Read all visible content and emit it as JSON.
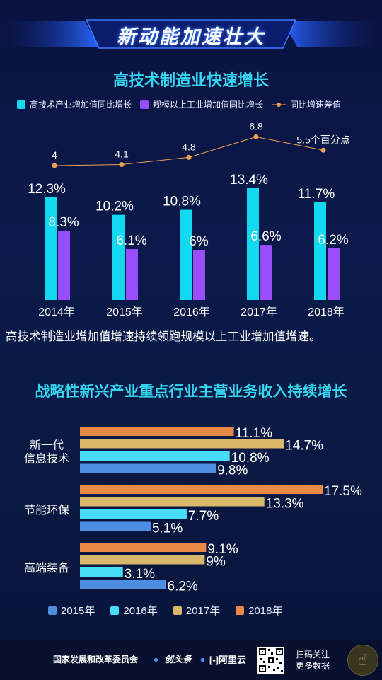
{
  "banner": {
    "title": "新动能加速壮大"
  },
  "section1": {
    "title": "高技术制造业快速增长",
    "legend": [
      {
        "name": "高技术产业增加值同比增长",
        "color": "#12d8f0"
      },
      {
        "name": "规模以上工业增加值同比增长",
        "color": "#9a4dff"
      },
      {
        "name": "同比增速差值",
        "color": "#f0a050"
      }
    ],
    "caption": "高技术制造业增加值增速持续领跑规模以上工业增加值增速。"
  },
  "section2": {
    "title": "战略性新兴产业重点行业主营业务收入持续增长",
    "legend": [
      {
        "name": "2015年",
        "color": "#4d8ee0"
      },
      {
        "name": "2016年",
        "color": "#48dcf5"
      },
      {
        "name": "2017年",
        "color": "#d8b86a"
      },
      {
        "name": "2018年",
        "color": "#e88a45"
      }
    ]
  },
  "footer": {
    "org": "国家发展和改革委员会",
    "logo1": "创头条",
    "logo2": "[-]阿里云",
    "scan": [
      "扫码关注",
      "更多数据"
    ]
  },
  "chart_data": [
    {
      "type": "bar",
      "title": "高技术制造业快速增长",
      "categories": [
        "2014年",
        "2015年",
        "2016年",
        "2017年",
        "2018年"
      ],
      "series": [
        {
          "name": "高技术产业增加值同比增长",
          "values": [
            12.3,
            10.2,
            10.8,
            13.4,
            11.7
          ],
          "labels": [
            "12.3%",
            "10.2%",
            "10.8%",
            "13.4%",
            "11.7%"
          ]
        },
        {
          "name": "规模以上工业增加值同比增长",
          "values": [
            8.3,
            6.1,
            6.0,
            6.6,
            6.2
          ],
          "labels": [
            "8.3%",
            "6.1%",
            "6%",
            "6.6%",
            "6.2%"
          ]
        },
        {
          "name": "同比增速差值",
          "type": "line",
          "values": [
            4,
            4.1,
            4.8,
            6.8,
            5.5
          ],
          "labels": [
            "4",
            "4.1",
            "4.8",
            "6.8",
            "5.5个百分点"
          ]
        }
      ],
      "legend": "top",
      "grid": false
    },
    {
      "type": "bar",
      "orientation": "horizontal",
      "title": "战略性新兴产业重点行业主营业务收入持续增长",
      "categories": [
        "新一代信息技术",
        "节能环保",
        "高端装备"
      ],
      "category_lines": [
        [
          "新一代",
          "信息技术"
        ],
        [
          "节能环保"
        ],
        [
          "高端装备"
        ]
      ],
      "series": [
        {
          "name": "2018年",
          "values": [
            11.1,
            17.5,
            9.1
          ],
          "labels": [
            "11.1%",
            "17.5%",
            "9.1%"
          ]
        },
        {
          "name": "2017年",
          "values": [
            14.7,
            13.3,
            9
          ],
          "labels": [
            "14.7%",
            "13.3%",
            "9%"
          ]
        },
        {
          "name": "2016年",
          "values": [
            10.8,
            7.7,
            3.1
          ],
          "labels": [
            "10.8%",
            "7.7%",
            "3.1%"
          ]
        },
        {
          "name": "2015年",
          "values": [
            9.8,
            5.1,
            6.2
          ],
          "labels": [
            "9.8%",
            "5.1%",
            "6.2%"
          ]
        }
      ],
      "legend": "bottom",
      "grid": false
    }
  ]
}
